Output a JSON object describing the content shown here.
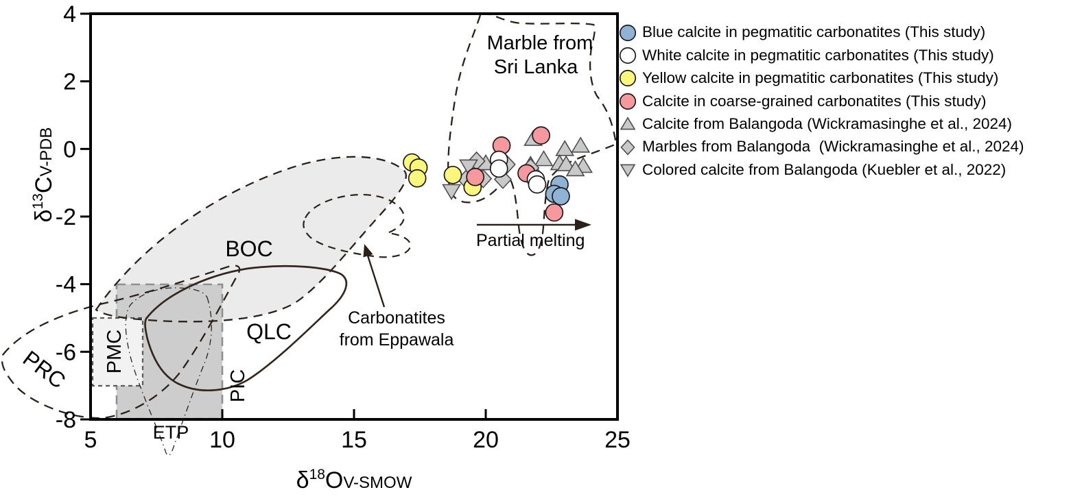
{
  "axes": {
    "x": {
      "title_delta": "δ",
      "title_sup": "18",
      "title_main": "O",
      "title_sub": "V-SMOW",
      "min": 5,
      "max": 25
    },
    "y": {
      "title_delta": "δ",
      "title_sup": "13",
      "title_main": "C",
      "title_sub": "V-PDB",
      "min": -8,
      "max": 4
    }
  },
  "fields": {
    "boc": "BOC",
    "qlc": "QLC",
    "pmc": "PMC",
    "pic": "PIC",
    "prc": "PRC",
    "etp": "ETP",
    "marble_line1": "Marble from",
    "marble_line2": "Sri Lanka",
    "eppawala_line1": "Carbonatites",
    "eppawala_line2": "from Eppawala"
  },
  "annotations": {
    "partial_melting": "Partial melting"
  },
  "colors": {
    "blue_marker": "#8FB3D4",
    "white_marker": "#FFFFFF",
    "yellow_marker": "#FBF77D",
    "pink_marker": "#F7989F",
    "gray_marker": "#C9C9C9",
    "field_light_gray": "#EBEBEB",
    "pic_fill": "#CDCDCD",
    "pmc_fill": "#F2F2F2",
    "dash_line": "#2B211B"
  },
  "chart_data": {
    "type": "scatter",
    "title": "",
    "xlabel": "δ18O V-SMOW",
    "ylabel": "δ13C V-PDB",
    "xlim": [
      5,
      25
    ],
    "ylim": [
      -8,
      4
    ],
    "x_ticks": [
      5,
      10,
      15,
      20,
      25
    ],
    "y_ticks": [
      4,
      2,
      0,
      -2,
      -4,
      -6,
      -8
    ],
    "grid": false,
    "legend_position": "right-outside",
    "fields": [
      {
        "label": "BOC",
        "style": "light-gray fill, dashed outline"
      },
      {
        "label": "QLC",
        "style": "solid outline"
      },
      {
        "label": "PMC",
        "style": "light rectangle, short-dash outline"
      },
      {
        "label": "PIC",
        "style": "gray rectangle, dashed outline"
      },
      {
        "label": "PRC",
        "style": "dashed outline"
      },
      {
        "label": "ETP",
        "style": "dash-dot outline"
      },
      {
        "label": "Marble from Sri Lanka",
        "style": "dashed outline"
      },
      {
        "label": "Carbonatites from Eppawala",
        "style": "dashed outline, arrow-annotated"
      }
    ],
    "series": [
      {
        "name": "Blue calcite in pegmatitic carbonatites (This study)",
        "marker": "circle",
        "fill": "#8FB3D4",
        "stroke": "#1a1a1a",
        "points": [
          [
            22.8,
            -1.05
          ],
          [
            22.6,
            -1.33
          ],
          [
            22.85,
            -1.4
          ]
        ]
      },
      {
        "name": "White calcite in pegmatitic carbonatites (This study)",
        "marker": "circle",
        "fill": "#FFFFFF",
        "stroke": "#1a1a1a",
        "points": [
          [
            20.5,
            -0.32
          ],
          [
            20.5,
            -0.58
          ],
          [
            21.9,
            -0.9
          ],
          [
            21.95,
            -1.05
          ]
        ]
      },
      {
        "name": "Yellow calcite in pegmatitic carbonatites (This study)",
        "marker": "circle",
        "fill": "#FBF77D",
        "stroke": "#1a1a1a",
        "points": [
          [
            17.2,
            -0.4
          ],
          [
            17.45,
            -0.55
          ],
          [
            17.4,
            -0.87
          ],
          [
            18.75,
            -0.77
          ],
          [
            19.5,
            -1.13
          ]
        ]
      },
      {
        "name": "Calcite in coarse-grained carbonatites (This study)",
        "marker": "circle",
        "fill": "#F7989F",
        "stroke": "#1a1a1a",
        "points": [
          [
            20.6,
            0.1
          ],
          [
            22.1,
            0.4
          ],
          [
            19.6,
            -0.83
          ],
          [
            21.55,
            -0.72
          ],
          [
            22.6,
            -1.88
          ]
        ]
      },
      {
        "name": "Calcite from Balangoda (Wickramasinghe et al., 2024)",
        "marker": "triangle-up",
        "fill": "#C9C9C9",
        "stroke": "#4d4d4d",
        "points": [
          [
            21.8,
            0.3
          ],
          [
            23.0,
            0.0
          ],
          [
            23.6,
            0.1
          ],
          [
            22.2,
            -0.3
          ],
          [
            22.8,
            -0.42
          ],
          [
            23.05,
            -0.45
          ],
          [
            23.7,
            -0.5
          ],
          [
            23.4,
            -0.6
          ],
          [
            21.7,
            -0.46
          ],
          [
            20.0,
            -0.42
          ]
        ]
      },
      {
        "name": "Marbles from Balangoda  (Wickramasinghe et al., 2024)",
        "marker": "diamond",
        "fill": "#C9C9C9",
        "stroke": "#4d4d4d",
        "points": [
          [
            19.65,
            -0.36
          ],
          [
            19.25,
            -0.9
          ],
          [
            19.9,
            -0.88
          ],
          [
            20.8,
            -0.46
          ],
          [
            20.65,
            -0.9
          ],
          [
            21.7,
            -0.56
          ]
        ]
      },
      {
        "name": "Colored calcite from Balangoda (Kuebler et al., 2022)",
        "marker": "triangle-down",
        "fill": "#C9C9C9",
        "stroke": "#4d4d4d",
        "points": [
          [
            18.7,
            -1.25
          ],
          [
            19.35,
            -0.52
          ]
        ]
      }
    ]
  }
}
